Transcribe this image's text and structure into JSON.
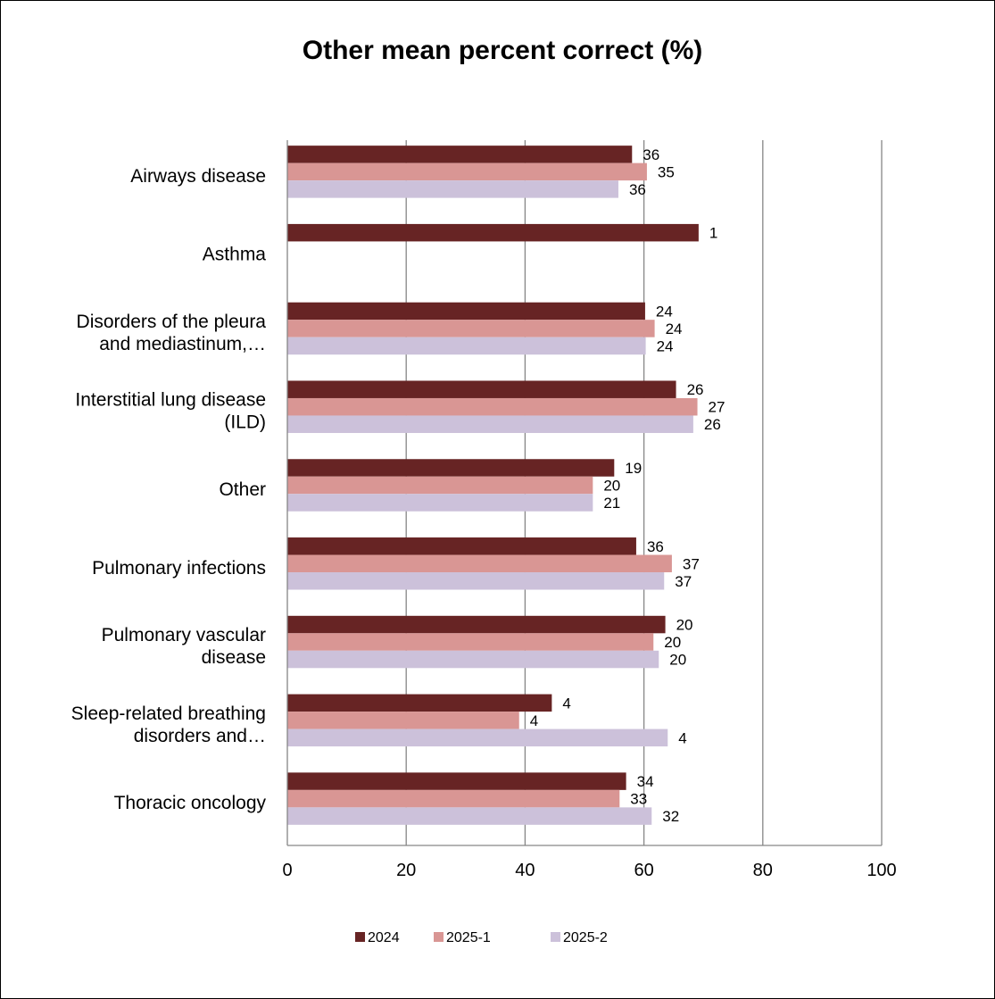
{
  "chart_data": {
    "type": "bar",
    "orientation": "horizontal",
    "title": "Other mean percent correct (%)",
    "xlabel": "",
    "ylabel": "",
    "xlim": [
      0,
      100
    ],
    "x_ticks": [
      0,
      20,
      40,
      60,
      80,
      100
    ],
    "grid": true,
    "legend_position": "bottom",
    "categories": [
      [
        "Airways disease"
      ],
      [
        "Asthma"
      ],
      [
        "Disorders of the pleura",
        "and mediastinum,…"
      ],
      [
        "Interstitial lung disease",
        "(ILD)"
      ],
      [
        "Other"
      ],
      [
        "Pulmonary infections"
      ],
      [
        "Pulmonary vascular",
        "disease"
      ],
      [
        "Sleep-related breathing",
        "disorders and…"
      ],
      [
        "Thoracic oncology"
      ]
    ],
    "series": [
      {
        "name": "2024",
        "color": "#672424",
        "values": [
          58,
          69.2,
          60.2,
          65.4,
          55,
          58.7,
          63.6,
          44.5,
          57
        ],
        "labels": [
          "36",
          "1",
          "24",
          "26",
          "19",
          "36",
          "20",
          "4",
          "34"
        ]
      },
      {
        "name": "2025-1",
        "color": "#d99694",
        "values": [
          60.5,
          null,
          61.8,
          69,
          51.4,
          64.7,
          61.6,
          39,
          55.9
        ],
        "labels": [
          "35",
          "",
          "24",
          "27",
          "20",
          "37",
          "20",
          "4",
          "33"
        ]
      },
      {
        "name": "2025-2",
        "color": "#ccc1da",
        "values": [
          55.7,
          null,
          60.3,
          68.3,
          51.4,
          63.4,
          62.5,
          64,
          61.3
        ],
        "labels": [
          "36",
          "",
          "24",
          "26",
          "21",
          "37",
          "20",
          "4",
          "32"
        ]
      }
    ]
  }
}
